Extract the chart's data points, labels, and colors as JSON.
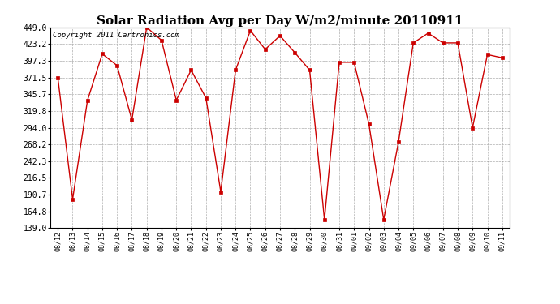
{
  "title": "Solar Radiation Avg per Day W/m2/minute 20110911",
  "copyright": "Copyright 2011 Cartronics.com",
  "labels": [
    "08/12",
    "08/13",
    "08/14",
    "08/15",
    "08/16",
    "08/17",
    "08/18",
    "08/19",
    "08/20",
    "08/21",
    "08/22",
    "08/23",
    "08/24",
    "08/25",
    "08/26",
    "08/27",
    "08/28",
    "08/29",
    "08/30",
    "08/31",
    "09/01",
    "09/02",
    "09/03",
    "09/04",
    "09/05",
    "09/06",
    "09/07",
    "09/08",
    "09/09",
    "09/10",
    "09/11"
  ],
  "values": [
    371.5,
    183.5,
    336.0,
    408.0,
    390.0,
    306.0,
    449.0,
    429.0,
    336.5,
    383.0,
    340.0,
    195.0,
    383.0,
    444.0,
    415.0,
    436.0,
    410.0,
    383.0,
    152.0,
    395.0,
    395.0,
    300.0,
    152.0,
    272.0,
    425.0,
    440.0,
    425.0,
    425.0,
    294.0,
    407.0,
    402.0
  ],
  "line_color": "#cc0000",
  "marker": "s",
  "marker_size": 2.5,
  "background_color": "#ffffff",
  "grid_color": "#999999",
  "ylim": [
    139.0,
    449.0
  ],
  "yticks": [
    139.0,
    164.8,
    190.7,
    216.5,
    242.3,
    268.2,
    294.0,
    319.8,
    345.7,
    371.5,
    397.3,
    423.2,
    449.0
  ],
  "title_fontsize": 11,
  "copyright_fontsize": 6.5,
  "xtick_fontsize": 6,
  "ytick_fontsize": 7
}
